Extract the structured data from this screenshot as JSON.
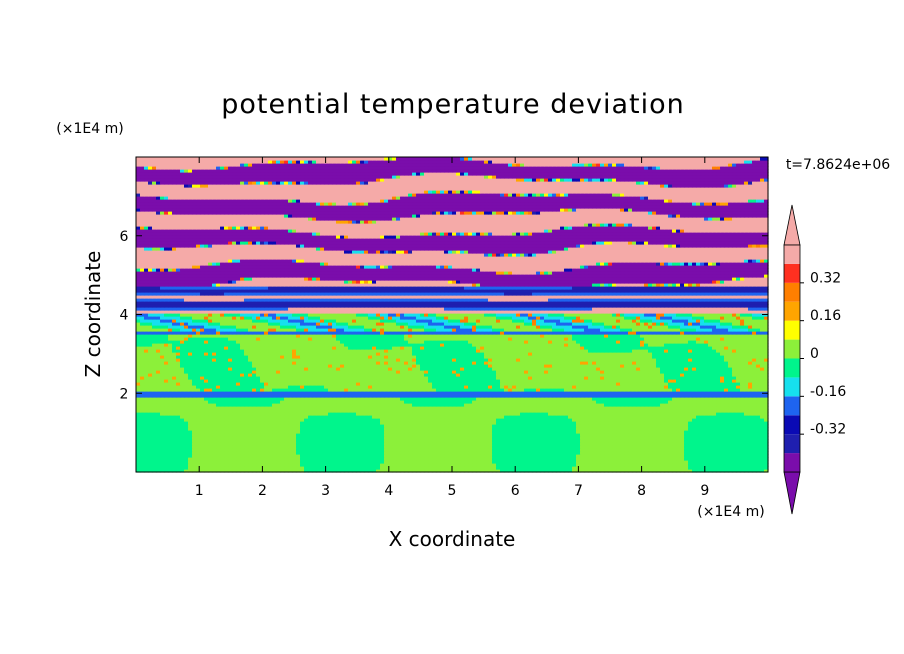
{
  "chart_data": {
    "type": "heatmap",
    "title": "potential temperature deviation",
    "xlabel": "X coordinate",
    "ylabel": "Z coordinate",
    "x_unit": "(×1E4 m)",
    "y_unit": "(×1E4 m)",
    "time_label": "t=7.8624e+06",
    "xlim": [
      0,
      10
    ],
    "ylim": [
      0,
      8
    ],
    "x_ticks": [
      "1",
      "2",
      "3",
      "4",
      "5",
      "6",
      "7",
      "8",
      "9"
    ],
    "y_ticks": [
      "2",
      "4",
      "6"
    ],
    "colorbar": {
      "levels": [
        -0.48,
        -0.4,
        -0.32,
        -0.24,
        -0.16,
        -0.08,
        0,
        0.08,
        0.16,
        0.24,
        0.32,
        0.4,
        0.48
      ],
      "tick_labels": [
        "-0.32",
        "-0.16",
        "0",
        "0.16",
        "0.32"
      ],
      "tick_values": [
        -0.32,
        -0.16,
        0,
        0.16,
        0.32
      ],
      "under_color": "#7a0dab",
      "over_color": "#f5aaa8",
      "colors": [
        "#7a0dab",
        "#1f1faf",
        "#0a0ab4",
        "#1e64f0",
        "#16e0ee",
        "#00f58c",
        "#8cf03a",
        "#ffff00",
        "#ffa500",
        "#ff7f00",
        "#ff3020",
        "#f5aaa8"
      ]
    }
  }
}
